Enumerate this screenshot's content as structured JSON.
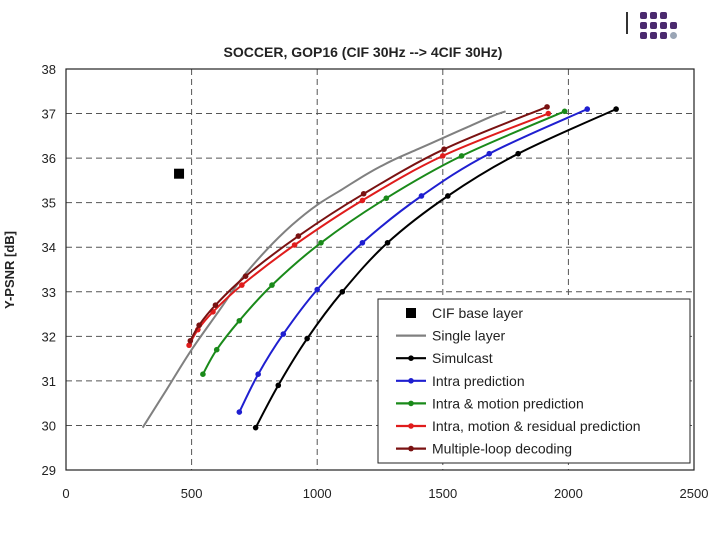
{
  "chart_data": {
    "type": "line",
    "title": "SOCCER, GOP16 (CIF 30Hz --> 4CIF 30Hz)",
    "xlabel": "",
    "ylabel": "Y-PSNR [dB]",
    "xlim": [
      0,
      2500
    ],
    "ylim": [
      29,
      38
    ],
    "xticks": [
      0,
      500,
      1000,
      1500,
      2000,
      2500
    ],
    "yticks": [
      29,
      30,
      31,
      32,
      33,
      34,
      35,
      36,
      37,
      38
    ],
    "grid": "dashed",
    "legend_position": "bottom-right",
    "series": [
      {
        "name": "CIF base layer",
        "color": "#000000",
        "style": "square-marker",
        "x": [
          450
        ],
        "y": [
          35.65
        ]
      },
      {
        "name": "Single layer",
        "color": "#808080",
        "style": "line",
        "x": [
          305,
          400,
          500,
          600,
          700,
          800,
          900,
          1000,
          1100,
          1200,
          1300,
          1400,
          1500,
          1600,
          1700,
          1750
        ],
        "y": [
          29.95,
          30.8,
          31.7,
          32.5,
          33.3,
          33.95,
          34.5,
          34.95,
          35.3,
          35.65,
          35.95,
          36.2,
          36.45,
          36.7,
          36.95,
          37.05
        ]
      },
      {
        "name": "Simulcast",
        "color": "#000000",
        "style": "line-dot",
        "x": [
          755,
          845,
          960,
          1100,
          1280,
          1520,
          1800,
          2190
        ],
        "y": [
          29.95,
          30.9,
          31.95,
          33.0,
          34.1,
          35.15,
          36.1,
          37.1
        ]
      },
      {
        "name": "Intra prediction",
        "color": "#1f1fd0",
        "style": "line-dot",
        "x": [
          690,
          765,
          865,
          1000,
          1180,
          1415,
          1685,
          2075
        ],
        "y": [
          30.3,
          31.15,
          32.05,
          33.05,
          34.1,
          35.15,
          36.1,
          37.1
        ]
      },
      {
        "name": "Intra & motion prediction",
        "color": "#1a8a1a",
        "style": "line-dot",
        "x": [
          545,
          600,
          690,
          820,
          1015,
          1275,
          1575,
          1985
        ],
        "y": [
          31.15,
          31.7,
          32.35,
          33.15,
          34.1,
          35.1,
          36.05,
          37.05
        ]
      },
      {
        "name": "Intra, motion & residual prediction",
        "color": "#e01c1c",
        "style": "line-dot",
        "x": [
          490,
          525,
          585,
          700,
          910,
          1180,
          1500,
          1920
        ],
        "y": [
          31.8,
          32.15,
          32.55,
          33.15,
          34.05,
          35.05,
          36.05,
          37.0
        ]
      },
      {
        "name": "Multiple-loop decoding",
        "color": "#7a1212",
        "style": "line-dot",
        "x": [
          495,
          530,
          595,
          715,
          925,
          1185,
          1505,
          1915
        ],
        "y": [
          31.9,
          32.25,
          32.7,
          33.35,
          34.25,
          35.2,
          36.2,
          37.15
        ]
      }
    ]
  }
}
